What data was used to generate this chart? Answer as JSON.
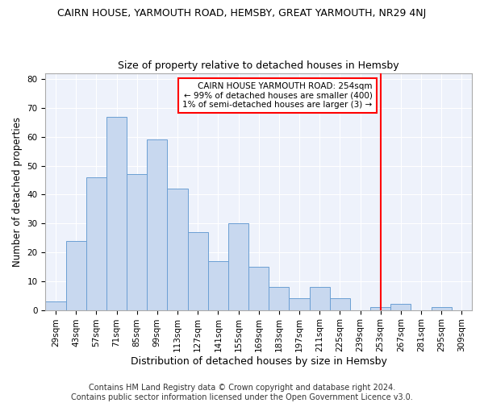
{
  "title": "CAIRN HOUSE, YARMOUTH ROAD, HEMSBY, GREAT YARMOUTH, NR29 4NJ",
  "subtitle": "Size of property relative to detached houses in Hemsby",
  "xlabel": "Distribution of detached houses by size in Hemsby",
  "ylabel": "Number of detached properties",
  "bar_labels": [
    "29sqm",
    "43sqm",
    "57sqm",
    "71sqm",
    "85sqm",
    "99sqm",
    "113sqm",
    "127sqm",
    "141sqm",
    "155sqm",
    "169sqm",
    "183sqm",
    "197sqm",
    "211sqm",
    "225sqm",
    "239sqm",
    "253sqm",
    "267sqm",
    "281sqm",
    "295sqm",
    "309sqm"
  ],
  "bar_values": [
    3,
    24,
    46,
    67,
    47,
    59,
    42,
    27,
    17,
    30,
    15,
    8,
    4,
    8,
    4,
    0,
    1,
    2,
    0,
    1,
    0
  ],
  "bar_color": "#c8d8ef",
  "bar_edge_color": "#6b9fd4",
  "ylim": [
    0,
    82
  ],
  "yticks": [
    0,
    10,
    20,
    30,
    40,
    50,
    60,
    70,
    80
  ],
  "red_line_index": 16,
  "annotation_line1": "CAIRN HOUSE YARMOUTH ROAD: 254sqm",
  "annotation_line2": "← 99% of detached houses are smaller (400)",
  "annotation_line3": "1% of semi-detached houses are larger (3) →",
  "footer1": "Contains HM Land Registry data © Crown copyright and database right 2024.",
  "footer2": "Contains public sector information licensed under the Open Government Licence v3.0.",
  "bg_color": "#eef2fb",
  "title_fontsize": 9,
  "subtitle_fontsize": 9,
  "xlabel_fontsize": 9,
  "ylabel_fontsize": 8.5,
  "tick_fontsize": 7.5,
  "footer_fontsize": 7
}
